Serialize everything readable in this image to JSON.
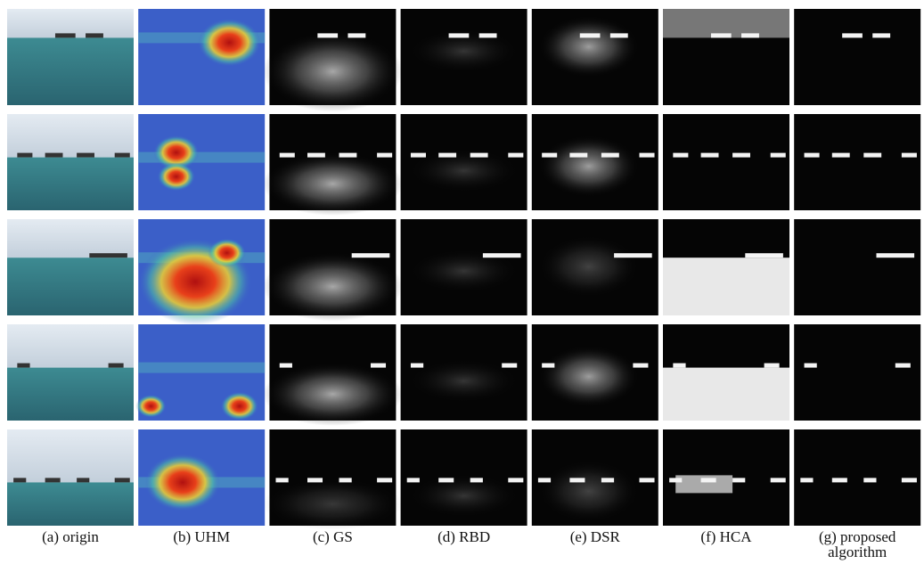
{
  "figure": {
    "captions": [
      "(a) origin",
      "(b) UHM",
      "(c) GS",
      "(d) RBD",
      "(e) DSR",
      "(f) HCA",
      "(g) proposed algorithm"
    ]
  }
}
